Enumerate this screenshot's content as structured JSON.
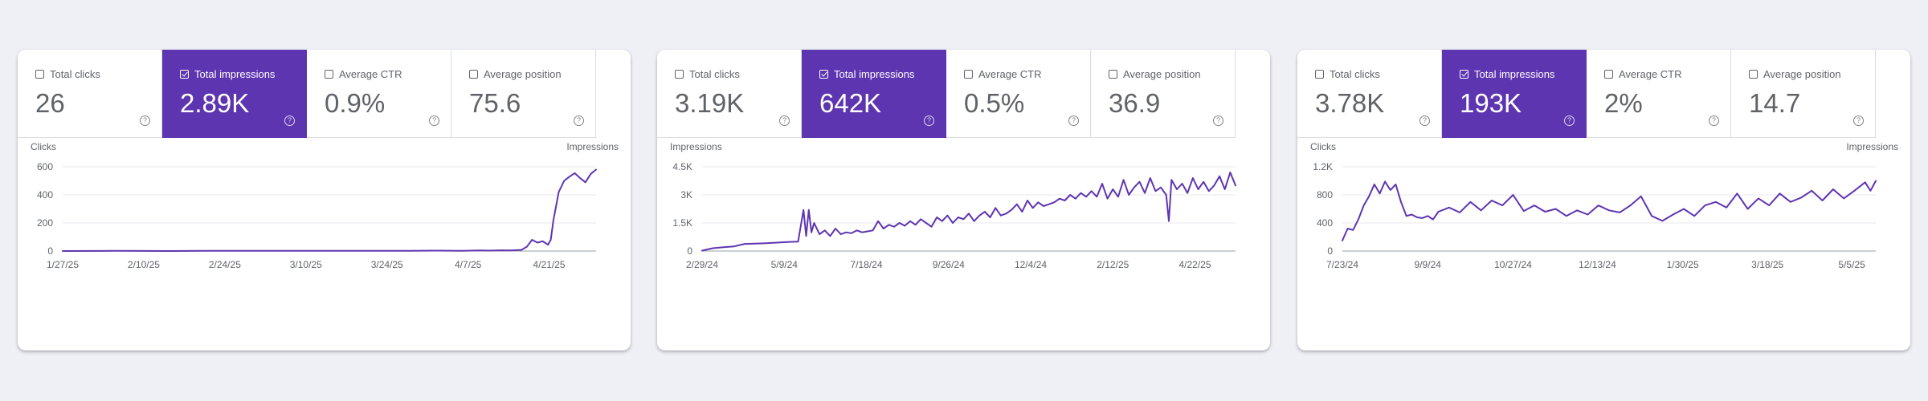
{
  "accent_color": "#5e35b1",
  "panels": [
    {
      "cards": [
        {
          "label": "Total clicks",
          "value": "26",
          "selected": false
        },
        {
          "label": "Total impressions",
          "value": "2.89K",
          "selected": true
        },
        {
          "label": "Average CTR",
          "value": "0.9%",
          "selected": false
        },
        {
          "label": "Average position",
          "value": "75.6",
          "selected": false
        }
      ],
      "help_glyph": "?"
    },
    {
      "cards": [
        {
          "label": "Total clicks",
          "value": "3.19K",
          "selected": false
        },
        {
          "label": "Total impressions",
          "value": "642K",
          "selected": true
        },
        {
          "label": "Average CTR",
          "value": "0.5%",
          "selected": false
        },
        {
          "label": "Average position",
          "value": "36.9",
          "selected": false
        }
      ],
      "help_glyph": "?"
    },
    {
      "cards": [
        {
          "label": "Total clicks",
          "value": "3.78K",
          "selected": false
        },
        {
          "label": "Total impressions",
          "value": "193K",
          "selected": true
        },
        {
          "label": "Average CTR",
          "value": "2%",
          "selected": false
        },
        {
          "label": "Average position",
          "value": "14.7",
          "selected": false
        }
      ],
      "help_glyph": "?"
    }
  ],
  "chart_data": [
    {
      "type": "line",
      "y_axis_title_left": "Clicks",
      "y_axis_title_right": "Impressions",
      "ylim": [
        0,
        600
      ],
      "yticks": [
        0,
        200,
        400,
        600
      ],
      "ytick_labels": [
        "0",
        "200",
        "400",
        "600"
      ],
      "xlim": [
        0,
        100
      ],
      "xticks": [
        0,
        15.2,
        30.4,
        45.6,
        60.8,
        76.0,
        91.2
      ],
      "xtick_labels": [
        "1/27/25",
        "2/10/25",
        "2/24/25",
        "3/10/25",
        "3/24/25",
        "4/7/25",
        "4/21/25"
      ],
      "grid": true,
      "series": [
        {
          "color": "#5e35b1",
          "x": [
            0,
            10,
            20,
            30,
            40,
            50,
            55,
            60,
            65,
            70,
            75,
            78,
            80,
            82,
            84,
            86,
            87,
            88,
            89,
            90,
            91,
            91.5,
            92,
            93,
            94,
            95,
            96,
            97,
            98,
            99,
            100
          ],
          "y": [
            0,
            1,
            0,
            2,
            1,
            2,
            1,
            2,
            2,
            3,
            2,
            4,
            3,
            5,
            4,
            8,
            30,
            80,
            60,
            70,
            45,
            80,
            220,
            420,
            500,
            530,
            555,
            520,
            490,
            550,
            580
          ]
        }
      ]
    },
    {
      "type": "line",
      "y_axis_title_left": "Impressions",
      "ylim": [
        0,
        4500
      ],
      "yticks": [
        0,
        1500,
        3000,
        4500
      ],
      "ytick_labels": [
        "0",
        "1.5K",
        "3K",
        "4.5K"
      ],
      "xlim": [
        0,
        100
      ],
      "xticks": [
        0,
        15.4,
        30.8,
        46.2,
        61.6,
        77.0,
        92.4
      ],
      "xtick_labels": [
        "2/29/24",
        "5/9/24",
        "7/18/24",
        "9/26/24",
        "12/4/24",
        "2/12/25",
        "4/22/25"
      ],
      "grid": true,
      "series": [
        {
          "color": "#5e35b1",
          "x": [
            0,
            2,
            4,
            6,
            8,
            10,
            12,
            14,
            16,
            18,
            19,
            19.5,
            20,
            20.5,
            21,
            22,
            23,
            24,
            25,
            26,
            27,
            28,
            29,
            30,
            31,
            32,
            33,
            34,
            35,
            36,
            37,
            38,
            39,
            40,
            41,
            42,
            43,
            44,
            45,
            46,
            47,
            48,
            49,
            50,
            51,
            52,
            53,
            54,
            55,
            56,
            57,
            58,
            59,
            60,
            61,
            62,
            63,
            64,
            65,
            66,
            67,
            68,
            69,
            70,
            71,
            72,
            73,
            74,
            75,
            76,
            77,
            78,
            79,
            80,
            81,
            82,
            83,
            84,
            85,
            86,
            87,
            87.5,
            88,
            89,
            90,
            91,
            92,
            93,
            94,
            95,
            96,
            97,
            98,
            99,
            100
          ],
          "y": [
            20,
            150,
            200,
            250,
            380,
            400,
            420,
            450,
            480,
            500,
            2200,
            800,
            2200,
            1000,
            1500,
            900,
            1100,
            800,
            1200,
            900,
            1000,
            950,
            1100,
            1000,
            1050,
            1100,
            1600,
            1200,
            1400,
            1300,
            1500,
            1350,
            1600,
            1400,
            1700,
            1500,
            1300,
            1800,
            1600,
            1900,
            1500,
            1800,
            1700,
            2000,
            1600,
            1900,
            2100,
            1800,
            2300,
            1900,
            2000,
            2200,
            2500,
            2100,
            2700,
            2300,
            2600,
            2400,
            2500,
            2600,
            2800,
            2700,
            3000,
            2800,
            3100,
            2900,
            3200,
            2900,
            3600,
            2800,
            3300,
            2900,
            3800,
            3000,
            3400,
            3700,
            3100,
            3900,
            3200,
            3400,
            3000,
            1600,
            3800,
            3300,
            3600,
            3100,
            3900,
            3300,
            3700,
            3200,
            3500,
            4000,
            3300,
            4200,
            3500
          ]
        }
      ]
    },
    {
      "type": "line",
      "y_axis_title_left": "Clicks",
      "y_axis_title_right": "Impressions",
      "ylim": [
        0,
        1200
      ],
      "yticks": [
        0,
        400,
        800,
        1200
      ],
      "ytick_labels": [
        "0",
        "400",
        "800",
        "1.2K"
      ],
      "xlim": [
        0,
        100
      ],
      "xticks": [
        0,
        16.0,
        32.0,
        47.8,
        63.8,
        79.7,
        95.5
      ],
      "xtick_labels": [
        "7/23/24",
        "9/9/24",
        "10/27/24",
        "12/13/24",
        "1/30/25",
        "3/18/25",
        "5/5/25"
      ],
      "grid": true,
      "series": [
        {
          "color": "#5e35b1",
          "x": [
            0,
            1,
            2,
            3,
            4,
            5,
            6,
            7,
            8,
            9,
            10,
            11,
            12,
            13,
            14,
            15,
            16,
            17,
            18,
            20,
            22,
            24,
            26,
            28,
            30,
            32,
            34,
            36,
            38,
            40,
            42,
            44,
            46,
            48,
            50,
            52,
            54,
            56,
            58,
            60,
            62,
            64,
            66,
            68,
            70,
            72,
            74,
            76,
            78,
            80,
            82,
            84,
            86,
            88,
            90,
            92,
            94,
            96,
            98,
            99,
            100
          ],
          "y": [
            150,
            320,
            300,
            450,
            650,
            780,
            950,
            820,
            990,
            870,
            950,
            700,
            500,
            520,
            480,
            470,
            500,
            450,
            560,
            620,
            550,
            700,
            580,
            720,
            650,
            800,
            570,
            650,
            560,
            600,
            500,
            580,
            520,
            650,
            580,
            550,
            650,
            780,
            500,
            430,
            520,
            600,
            500,
            650,
            700,
            620,
            820,
            600,
            750,
            650,
            820,
            700,
            760,
            860,
            720,
            880,
            750,
            860,
            980,
            860,
            1000
          ]
        }
      ]
    }
  ]
}
